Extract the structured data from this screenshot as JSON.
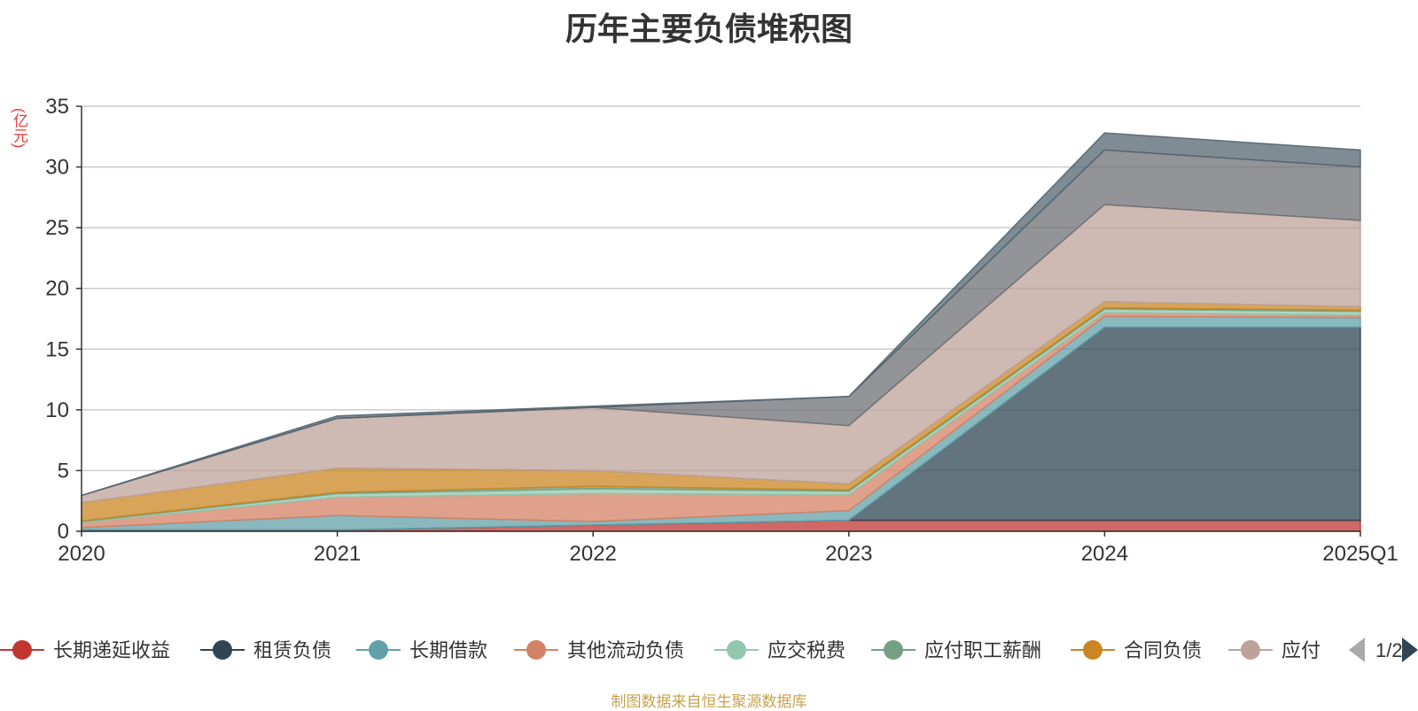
{
  "title": "历年主要负债堆积图",
  "unit_label": "(亿元)",
  "source_note": "制图数据来自恒生聚源数据库",
  "pager": {
    "text": "1/2",
    "prev_icon": "triangle-left-icon",
    "next_icon": "triangle-right-icon"
  },
  "chart_data": {
    "type": "area",
    "stacked": true,
    "categories": [
      "2020",
      "2021",
      "2022",
      "2023",
      "2024",
      "2025Q1"
    ],
    "ylim": [
      0,
      35
    ],
    "yticks": [
      0,
      5,
      10,
      15,
      20,
      25,
      30,
      35
    ],
    "ylabel": "(亿元)",
    "grid": true,
    "legend_position": "bottom",
    "series": [
      {
        "name": "长期递延收益",
        "color": "#c23531",
        "values": [
          0.1,
          0.1,
          0.5,
          0.9,
          0.9,
          0.9
        ]
      },
      {
        "name": "租赁负债",
        "color": "#2f4554",
        "values": [
          0,
          0,
          0,
          0,
          15.9,
          15.9
        ]
      },
      {
        "name": "长期借款",
        "color": "#61a0a8",
        "values": [
          0.2,
          1.2,
          0.3,
          0.8,
          0.9,
          0.8
        ]
      },
      {
        "name": "其他流动负债",
        "color": "#d48265",
        "values": [
          0.4,
          1.5,
          2.3,
          1.3,
          0.3,
          0.2
        ]
      },
      {
        "name": "应交税费",
        "color": "#91c7ae",
        "values": [
          0.1,
          0.3,
          0.4,
          0.3,
          0.3,
          0.3
        ]
      },
      {
        "name": "应付职工薪酬",
        "color": "#749f83",
        "values": [
          0.05,
          0.1,
          0.2,
          0.1,
          0.1,
          0.1
        ]
      },
      {
        "name": "合同负债",
        "color": "#ca8622",
        "values": [
          1.5,
          2.0,
          1.3,
          0.5,
          0.5,
          0.3
        ]
      },
      {
        "name": "应付",
        "color": "#bda29a",
        "values": [
          0.6,
          4.1,
          5.2,
          4.8,
          8.0,
          7.1
        ]
      },
      {
        "name": "",
        "color": "#6e7074",
        "values": [
          0,
          0,
          0,
          2.4,
          4.5,
          4.4
        ]
      },
      {
        "name": "",
        "color": "#546570",
        "values": [
          0,
          0.2,
          0.1,
          0,
          1.4,
          1.4
        ]
      }
    ]
  }
}
